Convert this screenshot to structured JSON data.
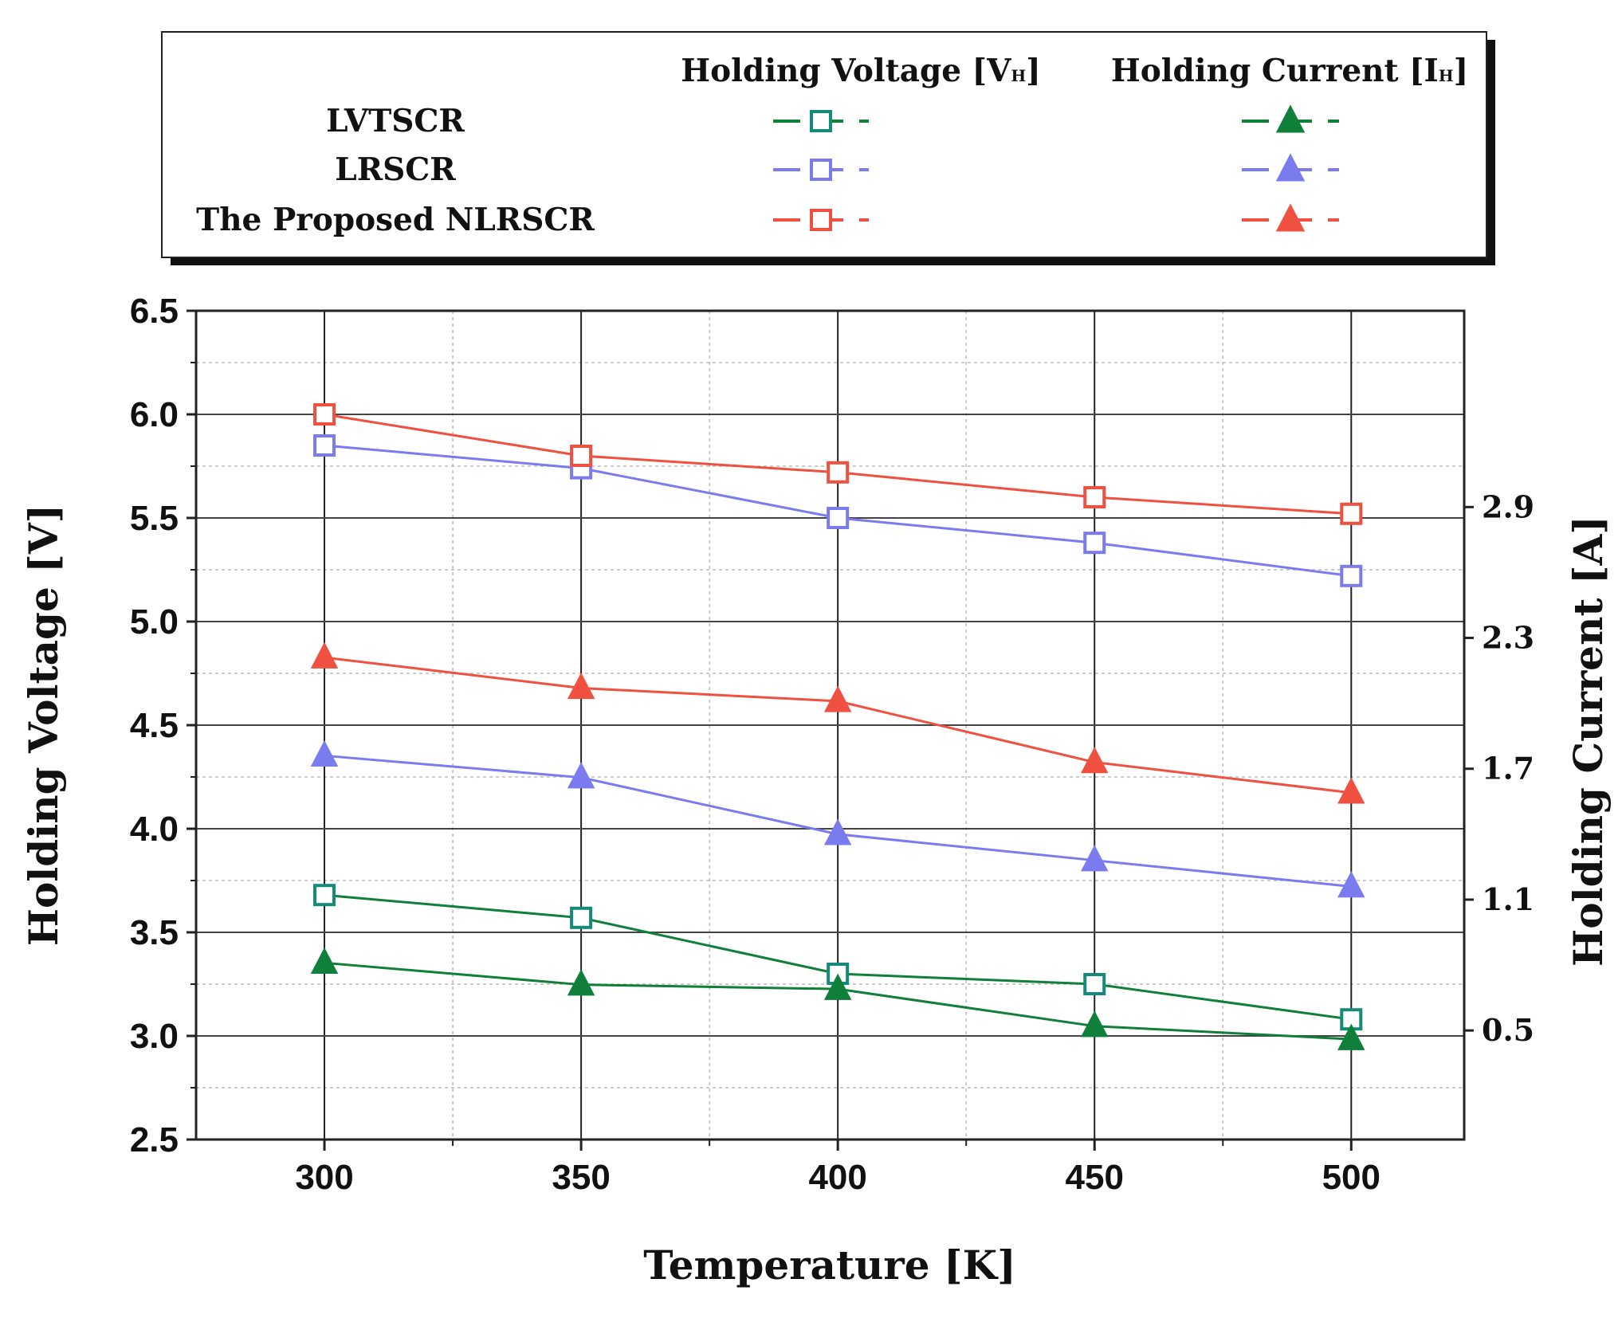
{
  "chart_data": {
    "type": "line",
    "xlabel": "Temperature [K]",
    "ylabel": "Holding Voltage [V]",
    "y2label": "Holding Current [A]",
    "x": [
      300,
      350,
      400,
      450,
      500
    ],
    "xlim": [
      275,
      522
    ],
    "ylim": [
      2.5,
      6.5
    ],
    "y2lim": [
      0.0,
      3.8
    ],
    "xticks": [
      "300",
      "350",
      "400",
      "450",
      "500"
    ],
    "yticks": [
      "2.5",
      "3.0",
      "3.5",
      "4.0",
      "4.5",
      "5.0",
      "5.5",
      "6.0",
      "6.5"
    ],
    "y2ticks": [
      "0.5",
      "1.1",
      "1.7",
      "2.3",
      "2.9"
    ],
    "grid": true,
    "legend": {
      "placement": "top",
      "header_voltage": "Holding Voltage [V",
      "header_voltage_sub": "H",
      "header_current": "Holding Current [I",
      "header_current_sub": "H",
      "close": "]"
    },
    "series": [
      {
        "name": "LVTSCR",
        "color": "#0f7f3a",
        "marker_color": "#138a7a",
        "voltage": [
          3.68,
          3.57,
          3.3,
          3.25,
          3.08
        ],
        "current": [
          0.81,
          0.71,
          0.69,
          0.52,
          0.46
        ]
      },
      {
        "name": "LRSCR",
        "color": "#7b7bf0",
        "marker_color": "#7b7bf0",
        "voltage": [
          5.85,
          5.74,
          5.5,
          5.38,
          5.22
        ],
        "current": [
          1.76,
          1.66,
          1.4,
          1.28,
          1.16
        ]
      },
      {
        "name": "The Proposed NLRSCR",
        "color": "#f05040",
        "marker_color": "#f05040",
        "voltage": [
          6.0,
          5.8,
          5.72,
          5.6,
          5.52
        ],
        "current": [
          2.21,
          2.07,
          2.01,
          1.73,
          1.59
        ]
      }
    ]
  }
}
